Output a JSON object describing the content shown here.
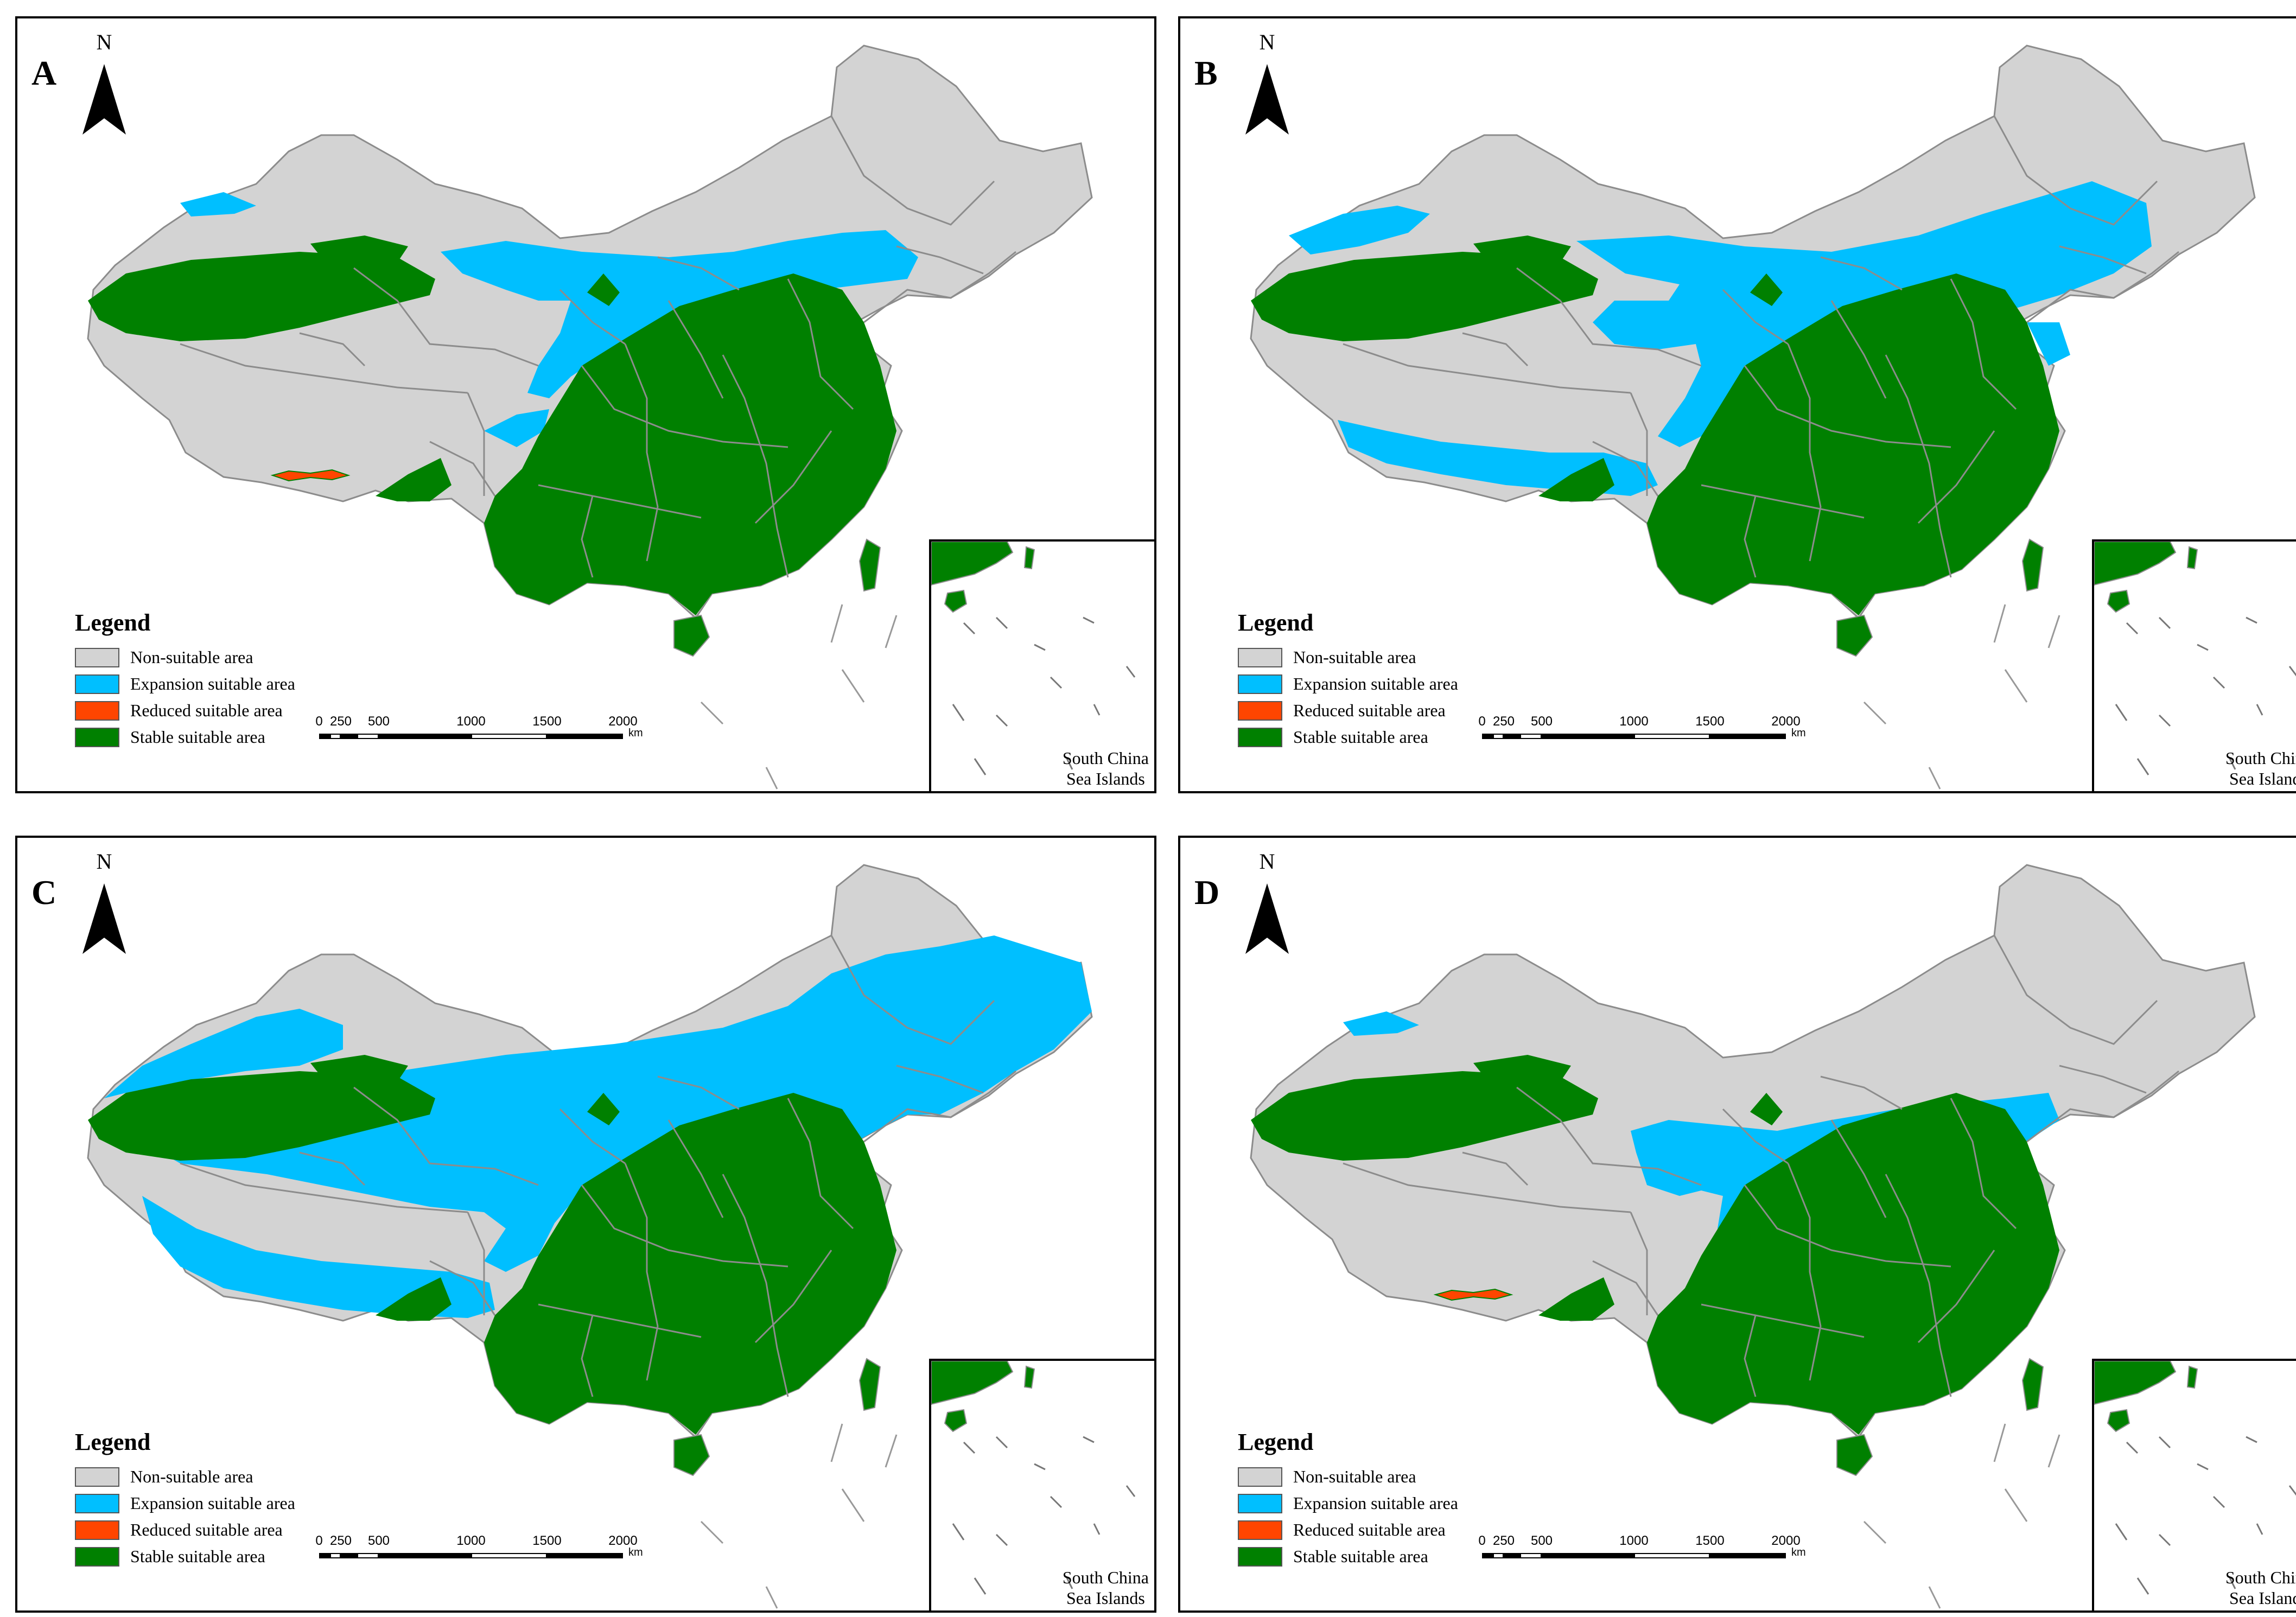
{
  "panels": [
    {
      "id": "A",
      "label": "A",
      "scenario": "A"
    },
    {
      "id": "B",
      "label": "B",
      "scenario": "B"
    },
    {
      "id": "C",
      "label": "C",
      "scenario": "C"
    },
    {
      "id": "D",
      "label": "D",
      "scenario": "D"
    }
  ],
  "north_arrow": {
    "letter": "N"
  },
  "legend": {
    "title": "Legend",
    "items": [
      {
        "label": "Non-suitable area",
        "color": "#d3d3d3"
      },
      {
        "label": "Expansion suitable area",
        "color": "#00bfff"
      },
      {
        "label": "Reduced suitable area",
        "color": "#ff4500"
      },
      {
        "label": "Stable suitable area",
        "color": "#008000"
      }
    ]
  },
  "scale_bar": {
    "ticks": [
      "0",
      "250",
      "500",
      "1000",
      "1500",
      "2000"
    ],
    "unit": "km"
  },
  "inset": {
    "line1": "South China",
    "line2": "Sea Islands"
  },
  "colors": {
    "non_suitable": "#d3d3d3",
    "expansion": "#00bfff",
    "reduced": "#ff4500",
    "stable": "#008000",
    "border": "#8c8c8c"
  }
}
